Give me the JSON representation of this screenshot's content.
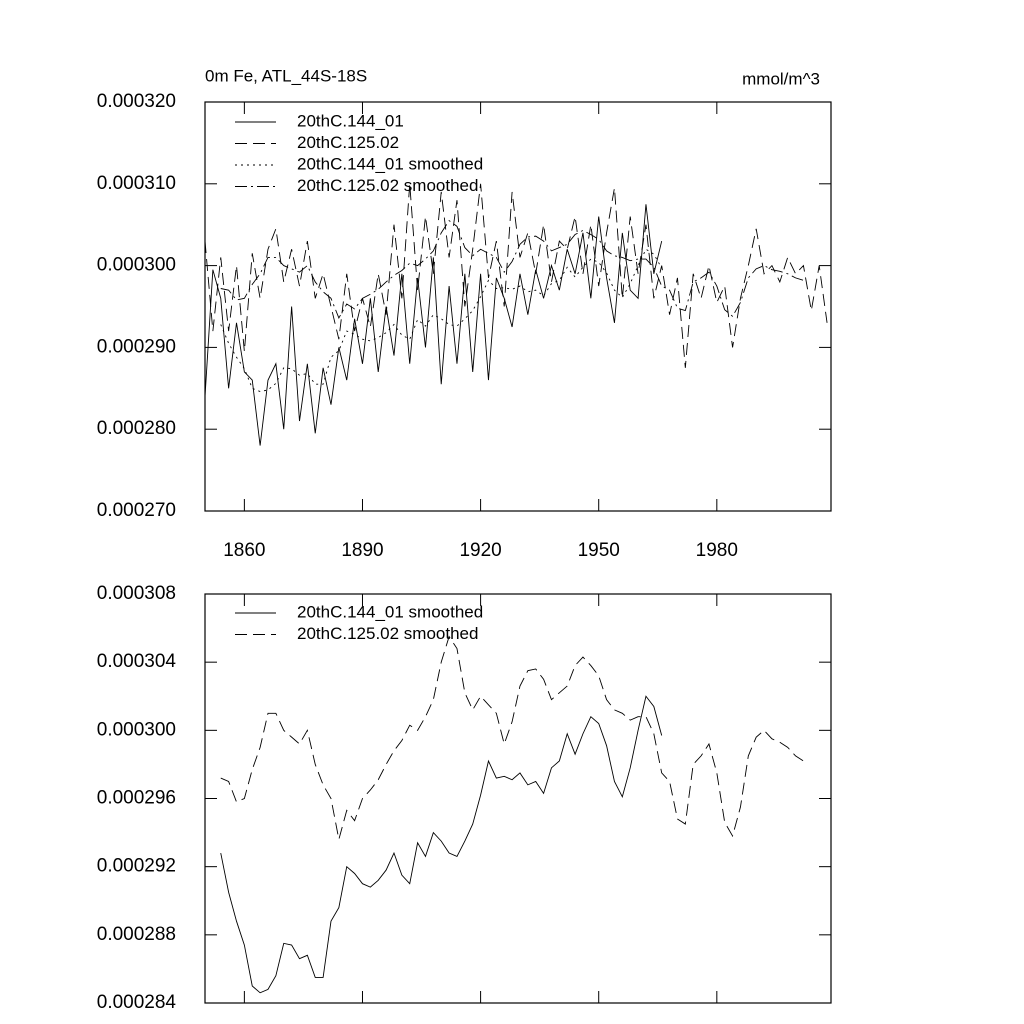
{
  "chart_data": [
    {
      "type": "line",
      "title": "0m Fe, ATL_44S-18S",
      "units": "mmol/m^3",
      "x": [
        1850,
        1852,
        1854,
        1856,
        1858,
        1860,
        1862,
        1864,
        1866,
        1868,
        1870,
        1872,
        1874,
        1876,
        1878,
        1880,
        1882,
        1884,
        1886,
        1888,
        1890,
        1892,
        1894,
        1896,
        1898,
        1900,
        1902,
        1904,
        1906,
        1908,
        1910,
        1912,
        1914,
        1916,
        1918,
        1920,
        1922,
        1924,
        1926,
        1928,
        1930,
        1932,
        1934,
        1936,
        1938,
        1940,
        1942,
        1944,
        1946,
        1948,
        1950,
        1952,
        1954,
        1956,
        1958,
        1960,
        1962,
        1964,
        1966,
        1968,
        1970,
        1972,
        1974,
        1976,
        1978,
        1980,
        1982,
        1984,
        1986,
        1988,
        1990,
        1992,
        1994,
        1996,
        1998,
        2000,
        2002,
        2004,
        2006,
        2008
      ],
      "xlim": [
        1850,
        2009
      ],
      "xticks": [
        1860,
        1890,
        1920,
        1950,
        1980
      ],
      "show_xtick_labels": true,
      "ylim": [
        0.00027,
        0.00032
      ],
      "yticks": [
        {
          "value": 0.00027,
          "label": "0.000270"
        },
        {
          "value": 0.00028,
          "label": "0.000280"
        },
        {
          "value": 0.00029,
          "label": "0.000290"
        },
        {
          "value": 0.0003,
          "label": "0.000300"
        },
        {
          "value": 0.00031,
          "label": "0.000310"
        },
        {
          "value": 0.00032,
          "label": "0.000320"
        }
      ],
      "series": [
        {
          "name": "20thC.144_01",
          "color": "#000000",
          "dash": "solid",
          "values": [
            0.000284,
            0.0002995,
            0.000296,
            0.000285,
            0.000293,
            0.000287,
            0.000286,
            0.000278,
            0.000286,
            0.000288,
            0.00028,
            0.000295,
            0.000281,
            0.000288,
            0.0002795,
            0.0002875,
            0.000283,
            0.00029,
            0.000286,
            0.0002935,
            0.000288,
            0.000296,
            0.000287,
            0.000295,
            0.000289,
            0.000299,
            0.000288,
            0.0002985,
            0.00029,
            0.000301,
            0.0002855,
            0.0002975,
            0.000288,
            0.000299,
            0.000287,
            0.000299,
            0.000286,
            0.0002985,
            0.000296,
            0.0002925,
            0.000299,
            0.000294,
            0.0002995,
            0.000296,
            0.0003,
            0.000297,
            0.000302,
            0.000299,
            0.000304,
            0.000296,
            0.000306,
            0.0002985,
            0.000293,
            0.000304,
            0.000297,
            0.000296,
            0.0003075,
            0.000299,
            0.000303,
            null,
            null,
            null,
            null,
            null,
            null,
            null,
            null,
            null,
            null,
            null,
            null,
            null,
            null,
            null,
            null,
            null,
            null,
            null,
            null,
            null
          ]
        },
        {
          "name": "20thC.125.02",
          "color": "#000000",
          "dash": "dashed",
          "values": [
            0.000303,
            0.000292,
            0.000301,
            0.000292,
            0.0003,
            0.0002895,
            0.0003015,
            0.000296,
            0.000302,
            0.0003045,
            0.000298,
            0.000302,
            0.0002975,
            0.000303,
            0.000296,
            0.000299,
            0.000295,
            0.000291,
            0.000299,
            0.000292,
            0.000296,
            0.0002925,
            0.000299,
            0.000294,
            0.000305,
            0.000296,
            0.00031,
            0.000297,
            0.000306,
            0.000299,
            0.000309,
            0.000301,
            0.000308,
            0.000295,
            0.000302,
            0.00031,
            0.0002985,
            0.000303,
            0.000295,
            0.000309,
            0.000301,
            0.000304,
            0.000299,
            0.000305,
            0.000298,
            0.000303,
            0.000302,
            0.000306,
            0.000299,
            0.000305,
            0.0002975,
            0.000304,
            0.0003095,
            0.000296,
            0.000306,
            0.000299,
            0.000305,
            0.000296,
            0.0003,
            0.000294,
            0.0002985,
            0.0002875,
            0.000299,
            0.000296,
            0.0003,
            0.0002955,
            0.0002975,
            0.00029,
            0.000296,
            0.0003,
            0.0003045,
            0.000299,
            0.0003,
            0.000298,
            0.000301,
            0.000299,
            0.0003,
            0.0002945,
            0.0003,
            0.000293
          ]
        },
        {
          "name": "20thC.144_01 smoothed",
          "color": "#000000",
          "dash": "dotted",
          "values": [
            null,
            null,
            0.0002928,
            0.0002905,
            0.0002888,
            0.0002874,
            0.000285,
            0.0002846,
            0.0002848,
            0.0002856,
            0.0002875,
            0.0002874,
            0.0002866,
            0.0002868,
            0.0002855,
            0.0002855,
            0.0002888,
            0.0002896,
            0.000292,
            0.0002916,
            0.000291,
            0.0002908,
            0.0002912,
            0.0002918,
            0.0002928,
            0.0002915,
            0.000291,
            0.0002934,
            0.0002926,
            0.000294,
            0.0002935,
            0.0002928,
            0.0002926,
            0.0002935,
            0.0002945,
            0.0002962,
            0.0002982,
            0.0002972,
            0.0002973,
            0.0002971,
            0.0002975,
            0.0002968,
            0.000297,
            0.0002963,
            0.0002978,
            0.0002982,
            0.0002998,
            0.0002986,
            0.0002998,
            0.0003008,
            0.0003004,
            0.0002991,
            0.000297,
            0.0002961,
            0.0002978,
            0.0003,
            0.000302,
            0.0003014,
            0.0002997,
            null,
            null,
            null,
            null,
            null,
            null,
            null,
            null,
            null,
            null,
            null,
            null,
            null,
            null,
            null,
            null,
            null,
            null,
            null,
            null,
            null
          ]
        },
        {
          "name": "20thC.125.02 smoothed",
          "color": "#000000",
          "dash": "dashdot",
          "values": [
            null,
            null,
            0.0002972,
            0.000297,
            0.0002958,
            0.000296,
            0.0002977,
            0.000299,
            0.000301,
            0.000301,
            0.0003,
            0.0002996,
            0.0002992,
            0.0003,
            0.000298,
            0.0002968,
            0.000296,
            0.0002936,
            0.0002953,
            0.0002947,
            0.000296,
            0.0002965,
            0.0002971,
            0.000298,
            0.0002988,
            0.0002994,
            0.0003003,
            0.0003,
            0.0003008,
            0.0003018,
            0.000304,
            0.0003055,
            0.0003048,
            0.0003022,
            0.0003012,
            0.000302,
            0.0003015,
            0.000301,
            0.0002992,
            0.0003005,
            0.0003026,
            0.0003035,
            0.0003036,
            0.000303,
            0.0003018,
            0.0003022,
            0.0003026,
            0.0003038,
            0.0003043,
            0.0003038,
            0.0003032,
            0.0003018,
            0.0003012,
            0.000301,
            0.0003006,
            0.0003008,
            0.0003008,
            0.0002998,
            0.0002975,
            0.000297,
            0.0002948,
            0.0002945,
            0.000298,
            0.0002985,
            0.0002992,
            0.0002975,
            0.0002946,
            0.0002938,
            0.0002955,
            0.0002985,
            0.0002996,
            0.0003,
            0.0002995,
            0.0002993,
            0.000299,
            0.0002985,
            0.0002982,
            null,
            null,
            null
          ]
        }
      ]
    },
    {
      "type": "line",
      "x": [
        1850,
        1852,
        1854,
        1856,
        1858,
        1860,
        1862,
        1864,
        1866,
        1868,
        1870,
        1872,
        1874,
        1876,
        1878,
        1880,
        1882,
        1884,
        1886,
        1888,
        1890,
        1892,
        1894,
        1896,
        1898,
        1900,
        1902,
        1904,
        1906,
        1908,
        1910,
        1912,
        1914,
        1916,
        1918,
        1920,
        1922,
        1924,
        1926,
        1928,
        1930,
        1932,
        1934,
        1936,
        1938,
        1940,
        1942,
        1944,
        1946,
        1948,
        1950,
        1952,
        1954,
        1956,
        1958,
        1960,
        1962,
        1964,
        1966,
        1968,
        1970,
        1972,
        1974,
        1976,
        1978,
        1980,
        1982,
        1984,
        1986,
        1988,
        1990,
        1992,
        1994,
        1996,
        1998,
        2000,
        2002,
        2004,
        2006,
        2008
      ],
      "xlim": [
        1850,
        2009
      ],
      "xticks": [
        1860,
        1890,
        1920,
        1950,
        1980
      ],
      "show_xtick_labels": false,
      "ylim": [
        0.000284,
        0.000308
      ],
      "yticks": [
        {
          "value": 0.000284,
          "label": "0.000284"
        },
        {
          "value": 0.000288,
          "label": "0.000288"
        },
        {
          "value": 0.000292,
          "label": "0.000292"
        },
        {
          "value": 0.000296,
          "label": "0.000296"
        },
        {
          "value": 0.0003,
          "label": "0.000300"
        },
        {
          "value": 0.000304,
          "label": "0.000304"
        },
        {
          "value": 0.000308,
          "label": "0.000308"
        }
      ],
      "series": [
        {
          "name": "20thC.144_01 smoothed",
          "color": "#000000",
          "dash": "solid",
          "values": [
            null,
            null,
            0.0002928,
            0.0002905,
            0.0002888,
            0.0002874,
            0.000285,
            0.0002846,
            0.0002848,
            0.0002856,
            0.0002875,
            0.0002874,
            0.0002866,
            0.0002868,
            0.0002855,
            0.0002855,
            0.0002888,
            0.0002896,
            0.000292,
            0.0002916,
            0.000291,
            0.0002908,
            0.0002912,
            0.0002918,
            0.0002928,
            0.0002915,
            0.000291,
            0.0002934,
            0.0002926,
            0.000294,
            0.0002935,
            0.0002928,
            0.0002926,
            0.0002935,
            0.0002945,
            0.0002962,
            0.0002982,
            0.0002972,
            0.0002973,
            0.0002971,
            0.0002975,
            0.0002968,
            0.000297,
            0.0002963,
            0.0002978,
            0.0002982,
            0.0002998,
            0.0002986,
            0.0002998,
            0.0003008,
            0.0003004,
            0.0002991,
            0.000297,
            0.0002961,
            0.0002978,
            0.0003,
            0.000302,
            0.0003014,
            0.0002997,
            null,
            null,
            null,
            null,
            null,
            null,
            null,
            null,
            null,
            null,
            null,
            null,
            null,
            null,
            null,
            null,
            null,
            null,
            null,
            null,
            null
          ]
        },
        {
          "name": "20thC.125.02 smoothed",
          "color": "#000000",
          "dash": "dashed",
          "values": [
            null,
            null,
            0.0002972,
            0.000297,
            0.0002958,
            0.000296,
            0.0002977,
            0.000299,
            0.000301,
            0.000301,
            0.0003,
            0.0002996,
            0.0002992,
            0.0003,
            0.000298,
            0.0002968,
            0.000296,
            0.0002936,
            0.0002953,
            0.0002947,
            0.000296,
            0.0002965,
            0.0002971,
            0.000298,
            0.0002988,
            0.0002994,
            0.0003003,
            0.0003,
            0.0003008,
            0.0003018,
            0.000304,
            0.0003055,
            0.0003048,
            0.0003022,
            0.0003012,
            0.000302,
            0.0003015,
            0.000301,
            0.0002992,
            0.0003005,
            0.0003026,
            0.0003035,
            0.0003036,
            0.000303,
            0.0003018,
            0.0003022,
            0.0003026,
            0.0003038,
            0.0003043,
            0.0003038,
            0.0003032,
            0.0003018,
            0.0003012,
            0.000301,
            0.0003006,
            0.0003008,
            0.0003008,
            0.0002998,
            0.0002975,
            0.000297,
            0.0002948,
            0.0002945,
            0.000298,
            0.0002985,
            0.0002992,
            0.0002975,
            0.0002946,
            0.0002938,
            0.0002955,
            0.0002985,
            0.0002996,
            0.0003,
            0.0002995,
            0.0002993,
            0.000299,
            0.0002985,
            0.0002982,
            null,
            null,
            null
          ]
        }
      ]
    }
  ]
}
